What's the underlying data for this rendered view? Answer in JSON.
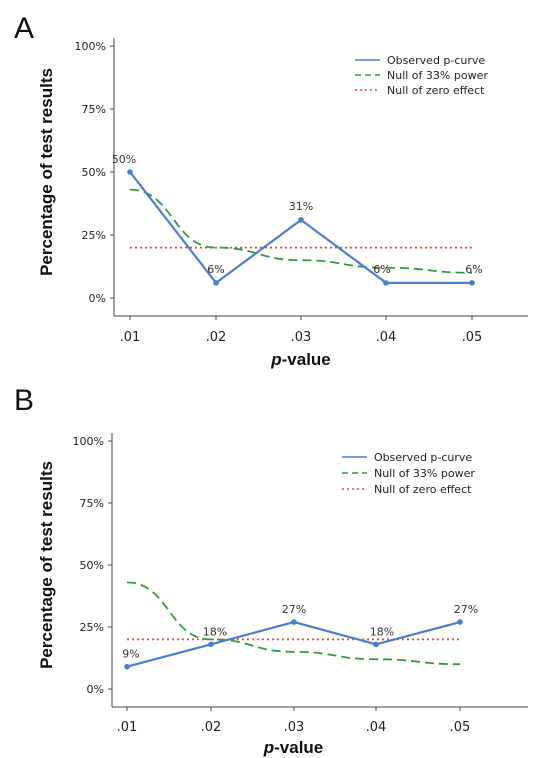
{
  "chart_data": [
    {
      "panel": "A",
      "type": "line",
      "xlabel_italic": "p",
      "xlabel_rest": "-value",
      "ylabel": "Percentage of test results",
      "categories": [
        ".01",
        ".02",
        ".03",
        ".04",
        ".05"
      ],
      "x": [
        0.01,
        0.02,
        0.03,
        0.04,
        0.05
      ],
      "ylim": [
        0,
        100
      ],
      "yticks": [
        0,
        25,
        50,
        75,
        100
      ],
      "ytick_labels": [
        "0%",
        "25%",
        "50%",
        "75%",
        "100%"
      ],
      "legend_position": "top-right",
      "series": [
        {
          "name": "Observed p-curve",
          "style": "solid",
          "color": "#4a7fc8",
          "values": [
            50,
            6,
            31,
            6,
            6
          ],
          "labels": [
            "50%",
            "6%",
            "31%",
            "6%",
            "6%"
          ]
        },
        {
          "name": "Null of 33% power",
          "style": "dashed",
          "color": "#2e9a3e",
          "values": [
            43,
            20,
            15,
            12,
            10
          ]
        },
        {
          "name": "Null of zero effect",
          "style": "dotted",
          "color": "#e8453c",
          "values": [
            20,
            20,
            20,
            20,
            20
          ]
        }
      ]
    },
    {
      "panel": "B",
      "type": "line",
      "xlabel_italic": "p",
      "xlabel_rest": "-value",
      "ylabel": "Percentage of test results",
      "categories": [
        ".01",
        ".02",
        ".03",
        ".04",
        ".05"
      ],
      "x": [
        0.01,
        0.02,
        0.03,
        0.04,
        0.05
      ],
      "ylim": [
        0,
        100
      ],
      "yticks": [
        0,
        25,
        50,
        75,
        100
      ],
      "ytick_labels": [
        "0%",
        "25%",
        "50%",
        "75%",
        "100%"
      ],
      "legend_position": "top-right",
      "series": [
        {
          "name": "Observed p-curve",
          "style": "solid",
          "color": "#4a7fc8",
          "values": [
            9,
            18,
            27,
            18,
            27
          ],
          "labels": [
            "9%",
            "18%",
            "27%",
            "18%",
            "27%"
          ]
        },
        {
          "name": "Null of 33% power",
          "style": "dashed",
          "color": "#2e9a3e",
          "values": [
            43,
            20,
            15,
            12,
            10
          ]
        },
        {
          "name": "Null of zero effect",
          "style": "dotted",
          "color": "#e8453c",
          "values": [
            20,
            20,
            20,
            20,
            20
          ]
        }
      ]
    }
  ]
}
